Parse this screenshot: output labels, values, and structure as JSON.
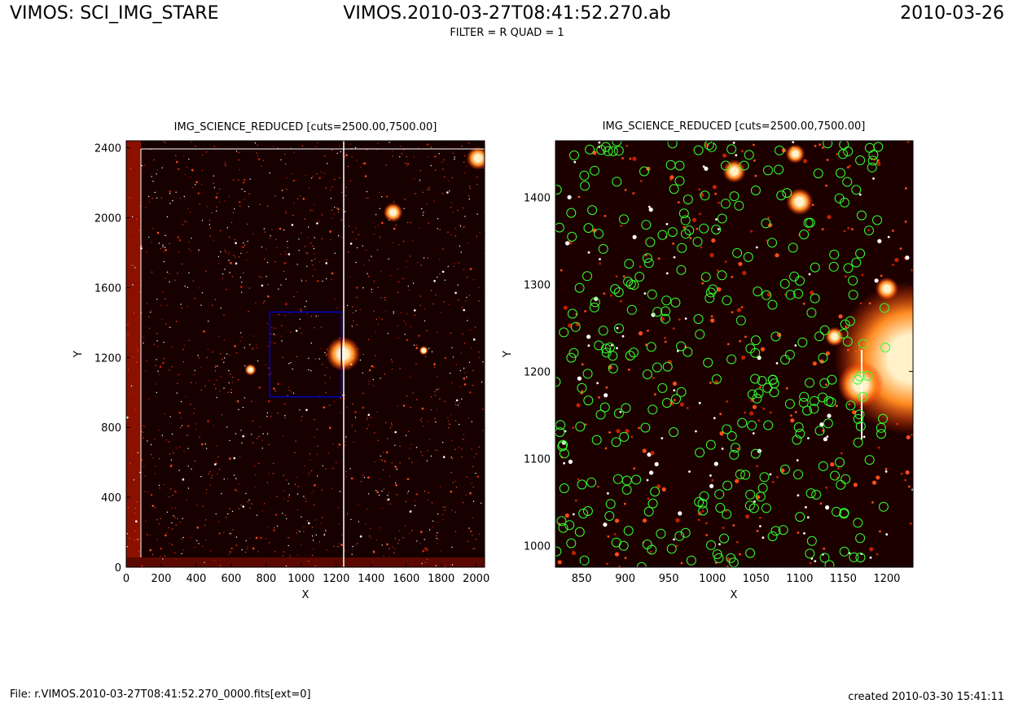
{
  "header": {
    "left": "VIMOS: SCI_IMG_STARE",
    "center": "VIMOS.2010-03-27T08:41:52.270.ab",
    "right": "2010-03-26",
    "subtitle": "FILTER = R QUAD = 1"
  },
  "footer": {
    "left": "File: r.VIMOS.2010-03-27T08:41:52.270_0000.fits[ext=0]",
    "right": "created 2010-03-30 15:41:11"
  },
  "colors": {
    "frame": "#000000",
    "image_background": "#170000",
    "star": "#ff4a1a",
    "bright_star": "#fff2c8",
    "zoom_box": "#0000cc",
    "detection_circle": "#33ff33"
  },
  "chart_data": [
    {
      "type": "heatmap",
      "name": "left",
      "title": "IMG_SCIENCE_REDUCED [cuts=2500.00,7500.00]",
      "xlabel": "X",
      "ylabel": "Y",
      "xlim": [
        0,
        2048
      ],
      "ylim": [
        0,
        2440
      ],
      "xticks": [
        0,
        200,
        400,
        600,
        800,
        1000,
        1200,
        1400,
        1600,
        1800,
        2000
      ],
      "yticks": [
        0,
        400,
        800,
        1200,
        1600,
        2000,
        2400
      ],
      "zoom_region": {
        "x": [
          820,
          1230
        ],
        "y": [
          975,
          1460
        ]
      },
      "bright_sources": [
        {
          "x": 1240,
          "y": 1220,
          "r": 45
        },
        {
          "x": 1525,
          "y": 2030,
          "r": 25
        },
        {
          "x": 2010,
          "y": 2340,
          "r": 30
        },
        {
          "x": 710,
          "y": 1130,
          "r": 15
        },
        {
          "x": 1700,
          "y": 1240,
          "r": 12
        }
      ]
    },
    {
      "type": "heatmap",
      "name": "right",
      "title": "IMG_SCIENCE_REDUCED [cuts=2500.00,7500.00]",
      "xlabel": "X",
      "ylabel": "Y",
      "xlim": [
        820,
        1230
      ],
      "ylim": [
        975,
        1465
      ],
      "xticks": [
        850,
        900,
        950,
        1000,
        1050,
        1100,
        1150,
        1200
      ],
      "yticks": [
        1000,
        1100,
        1200,
        1300,
        1400
      ],
      "bright_sources": [
        {
          "x": 1228,
          "y": 1215,
          "r": 40
        },
        {
          "x": 1170,
          "y": 1185,
          "r": 12
        },
        {
          "x": 1200,
          "y": 1295,
          "r": 6
        },
        {
          "x": 1100,
          "y": 1395,
          "r": 7
        },
        {
          "x": 1025,
          "y": 1430,
          "r": 6
        },
        {
          "x": 1140,
          "y": 1240,
          "r": 5
        },
        {
          "x": 1095,
          "y": 1450,
          "r": 5
        }
      ]
    }
  ]
}
